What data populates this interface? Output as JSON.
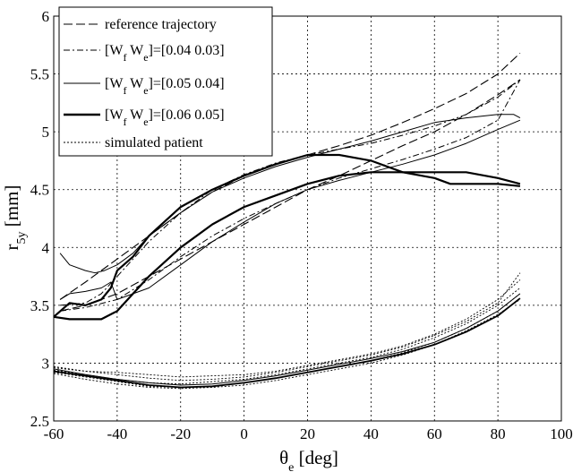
{
  "chart_data": {
    "type": "line",
    "title": "",
    "xlabel": {
      "main": "θ",
      "sub": "e",
      "rest": " [deg]"
    },
    "ylabel": {
      "main": "r",
      "sub": "5y",
      "rest": " [mm]"
    },
    "xlim": [
      -60,
      100
    ],
    "ylim": [
      2.5,
      6
    ],
    "xticks": [
      -60,
      -40,
      -20,
      0,
      20,
      40,
      60,
      80,
      100
    ],
    "yticks": [
      2.5,
      3,
      3.5,
      4,
      4.5,
      5,
      5.5,
      6
    ],
    "xtick_labels": [
      "-60",
      "-40",
      "-20",
      "0",
      "20",
      "40",
      "60",
      "80",
      "100"
    ],
    "ytick_labels": [
      "2.5",
      "3",
      "3.5",
      "4",
      "4.5",
      "5",
      "5.5",
      "6"
    ],
    "grid": true,
    "legend_position": "top-left",
    "legend": [
      {
        "label": "reference trajectory",
        "style": "dashed"
      },
      {
        "label": "[W",
        "sub1": "f",
        "mid": " W",
        "sub2": "e",
        "rest": "]=[0.04 0.03]",
        "style": "dashdot"
      },
      {
        "label": "[W",
        "sub1": "f",
        "mid": " W",
        "sub2": "e",
        "rest": "]=[0.05 0.04]",
        "style": "solid-thin"
      },
      {
        "label": "[W",
        "sub1": "f",
        "mid": " W",
        "sub2": "e",
        "rest": "]=[0.06 0.05]",
        "style": "solid-thick"
      },
      {
        "label": "simulated patient",
        "style": "dotted"
      }
    ],
    "series": [
      {
        "name": "reference trajectory",
        "style": "dashed",
        "width": 1.1,
        "x": [
          -58,
          -50,
          -40,
          -30,
          -20,
          -10,
          0,
          10,
          20,
          30,
          40,
          50,
          60,
          70,
          80,
          87
        ],
        "y": [
          3.55,
          3.7,
          3.9,
          4.1,
          4.3,
          4.48,
          4.62,
          4.72,
          4.8,
          4.88,
          4.97,
          5.08,
          5.2,
          5.33,
          5.5,
          5.68
        ]
      },
      {
        "name": "reference trajectory",
        "style": "dashed",
        "width": 1.1,
        "x": [
          -58,
          -50,
          -40,
          -30,
          -20,
          -10,
          0,
          10,
          20,
          30,
          40,
          50,
          60,
          70,
          80,
          87
        ],
        "y": [
          3.45,
          3.5,
          3.6,
          3.75,
          3.9,
          4.05,
          4.2,
          4.35,
          4.5,
          4.62,
          4.75,
          4.88,
          5.0,
          5.15,
          5.32,
          5.45
        ]
      },
      {
        "name": "[Wf We]=[0.04 0.03]",
        "style": "dashdot",
        "width": 1.0,
        "x": [
          -58,
          -50,
          -45,
          -40,
          -30,
          -20,
          -10,
          0,
          10,
          20,
          30,
          40,
          50,
          60,
          70,
          80,
          87
        ],
        "y": [
          3.5,
          3.52,
          3.6,
          3.75,
          4.05,
          4.3,
          4.5,
          4.63,
          4.73,
          4.8,
          4.85,
          4.9,
          4.97,
          5.05,
          5.15,
          5.3,
          5.45
        ]
      },
      {
        "name": "[Wf We]=[0.04 0.03]",
        "style": "dashdot",
        "width": 1.0,
        "x": [
          -58,
          -50,
          -40,
          -30,
          -20,
          -10,
          0,
          10,
          20,
          30,
          40,
          50,
          60,
          70,
          80,
          87
        ],
        "y": [
          3.45,
          3.48,
          3.55,
          3.72,
          3.92,
          4.1,
          4.25,
          4.38,
          4.5,
          4.6,
          4.68,
          4.76,
          4.85,
          4.95,
          5.1,
          5.45
        ]
      },
      {
        "name": "[Wf We]=[0.05 0.04]",
        "style": "solid",
        "width": 1.0,
        "x": [
          -58,
          -55,
          -50,
          -47,
          -44,
          -40,
          -35,
          -30,
          -20,
          -10,
          0,
          10,
          20,
          30,
          40,
          50,
          60,
          70,
          80,
          85,
          87
        ],
        "y": [
          3.95,
          3.85,
          3.8,
          3.78,
          3.8,
          3.85,
          3.95,
          4.1,
          4.3,
          4.48,
          4.6,
          4.7,
          4.78,
          4.85,
          4.92,
          5.0,
          5.08,
          5.12,
          5.15,
          5.15,
          5.12
        ]
      },
      {
        "name": "[Wf We]=[0.05 0.04]",
        "style": "solid",
        "width": 1.0,
        "x": [
          -58,
          -55,
          -50,
          -45,
          -42,
          -40,
          -30,
          -20,
          -10,
          0,
          10,
          20,
          30,
          40,
          50,
          60,
          70,
          80,
          87
        ],
        "y": [
          3.55,
          3.6,
          3.62,
          3.65,
          3.7,
          3.55,
          3.65,
          3.85,
          4.05,
          4.22,
          4.38,
          4.5,
          4.58,
          4.65,
          4.72,
          4.8,
          4.9,
          5.02,
          5.1
        ]
      },
      {
        "name": "[Wf We]=[0.06 0.05]",
        "style": "solid",
        "width": 2.2,
        "x": [
          -60,
          -55,
          -50,
          -45,
          -42,
          -40,
          -35,
          -30,
          -20,
          -10,
          0,
          10,
          20,
          30,
          40,
          50,
          60,
          65,
          70,
          80,
          87
        ],
        "y": [
          3.4,
          3.52,
          3.5,
          3.55,
          3.65,
          3.8,
          3.92,
          4.1,
          4.35,
          4.5,
          4.62,
          4.72,
          4.8,
          4.8,
          4.75,
          4.65,
          4.6,
          4.55,
          4.55,
          4.55,
          4.53
        ]
      },
      {
        "name": "[Wf We]=[0.06 0.05]",
        "style": "solid",
        "width": 2.2,
        "x": [
          -60,
          -55,
          -50,
          -45,
          -40,
          -35,
          -30,
          -20,
          -10,
          0,
          10,
          20,
          30,
          40,
          50,
          60,
          70,
          80,
          87
        ],
        "y": [
          3.4,
          3.38,
          3.38,
          3.38,
          3.45,
          3.6,
          3.75,
          4.0,
          4.2,
          4.35,
          4.45,
          4.55,
          4.62,
          4.65,
          4.65,
          4.65,
          4.65,
          4.6,
          4.55
        ]
      },
      {
        "name": "simulated patient",
        "style": "dotted",
        "width": 0.9,
        "x": [
          -60,
          -50,
          -40,
          -30,
          -20,
          -10,
          0,
          10,
          20,
          30,
          40,
          50,
          60,
          70,
          80,
          87
        ],
        "y": [
          2.97,
          2.93,
          2.92,
          2.9,
          2.88,
          2.89,
          2.9,
          2.93,
          2.98,
          3.03,
          3.08,
          3.15,
          3.25,
          3.38,
          3.55,
          3.72
        ]
      },
      {
        "name": "simulated patient",
        "style": "dotted",
        "width": 0.9,
        "x": [
          -60,
          -50,
          -40,
          -30,
          -20,
          -10,
          0,
          10,
          20,
          30,
          40,
          50,
          60,
          70,
          80,
          87
        ],
        "y": [
          2.94,
          2.9,
          2.86,
          2.83,
          2.82,
          2.84,
          2.86,
          2.9,
          2.95,
          3.0,
          3.05,
          3.12,
          3.22,
          3.34,
          3.5,
          3.65
        ]
      },
      {
        "name": "simulated patient",
        "style": "dotted",
        "width": 0.9,
        "x": [
          -60,
          -50,
          -40,
          -30,
          -20,
          -10,
          0,
          10,
          20,
          30,
          40,
          50,
          60,
          70,
          80,
          87
        ],
        "y": [
          2.92,
          2.88,
          2.84,
          2.8,
          2.79,
          2.8,
          2.83,
          2.87,
          2.92,
          2.97,
          3.02,
          3.09,
          3.18,
          3.3,
          3.45,
          3.6
        ]
      },
      {
        "name": "simulated patient",
        "style": "dotted",
        "width": 0.9,
        "x": [
          -60,
          -50,
          -40,
          -30,
          -20,
          -10,
          0,
          10,
          20,
          30,
          40,
          50,
          60,
          70,
          80,
          87
        ],
        "y": [
          2.96,
          2.93,
          2.9,
          2.87,
          2.85,
          2.86,
          2.88,
          2.92,
          2.97,
          3.02,
          3.07,
          3.14,
          3.24,
          3.36,
          3.52,
          3.78
        ]
      },
      {
        "name": "simulated patient",
        "style": "dotted",
        "width": 0.9,
        "x": [
          -60,
          -50,
          -40,
          -30,
          -20,
          -10,
          0,
          10,
          20,
          30,
          40,
          50,
          60,
          70,
          80,
          87
        ],
        "y": [
          2.91,
          2.86,
          2.82,
          2.79,
          2.78,
          2.79,
          2.81,
          2.85,
          2.9,
          2.95,
          3.0,
          3.07,
          3.16,
          3.28,
          3.42,
          3.55
        ]
      },
      {
        "name": "[Wf We]=[0.05 0.04]",
        "style": "solid",
        "width": 1.0,
        "x": [
          -60,
          -50,
          -40,
          -30,
          -20,
          -10,
          0,
          10,
          20,
          30,
          40,
          50,
          60,
          70,
          80,
          87
        ],
        "y": [
          2.95,
          2.9,
          2.86,
          2.83,
          2.81,
          2.82,
          2.85,
          2.89,
          2.94,
          2.99,
          3.04,
          3.1,
          3.18,
          3.3,
          3.45,
          3.6
        ]
      },
      {
        "name": "[Wf We]=[0.06 0.05]",
        "style": "solid",
        "width": 1.8,
        "x": [
          -60,
          -50,
          -40,
          -30,
          -20,
          -10,
          0,
          10,
          20,
          30,
          40,
          50,
          60,
          70,
          80,
          87
        ],
        "y": [
          2.93,
          2.89,
          2.85,
          2.81,
          2.79,
          2.8,
          2.83,
          2.87,
          2.92,
          2.97,
          3.02,
          3.08,
          3.16,
          3.27,
          3.41,
          3.56
        ]
      }
    ]
  }
}
